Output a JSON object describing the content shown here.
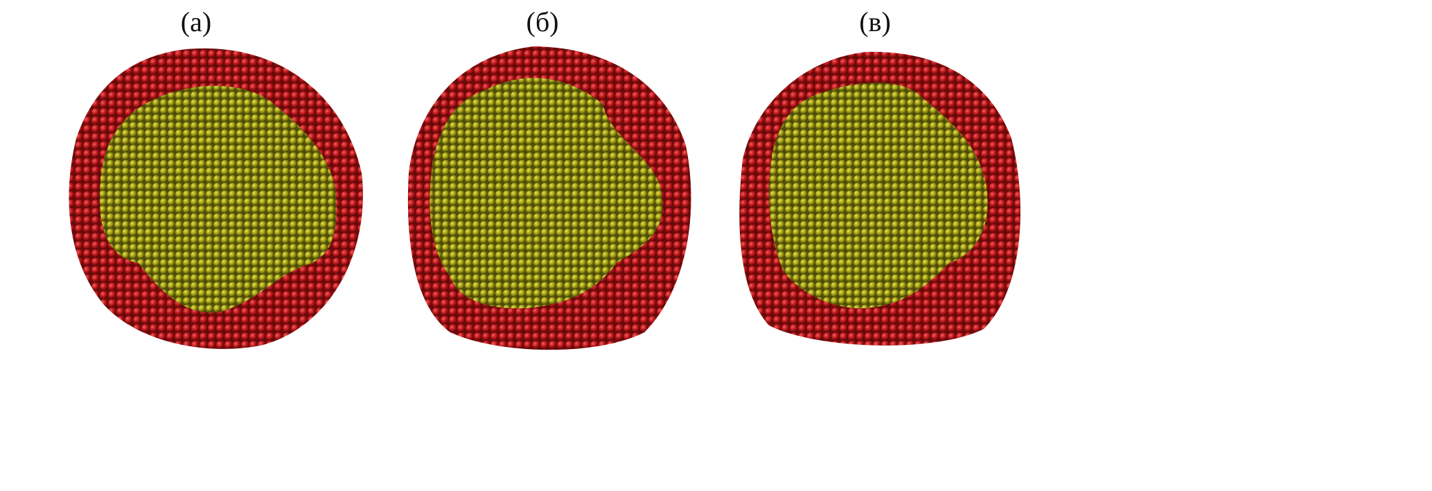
{
  "panels": [
    {
      "label": "(а)"
    },
    {
      "label": "(б)"
    },
    {
      "label": "(в)"
    }
  ],
  "colors": {
    "shell": "#c0171b",
    "core": "#9c9a14",
    "background": "#ffffff"
  }
}
